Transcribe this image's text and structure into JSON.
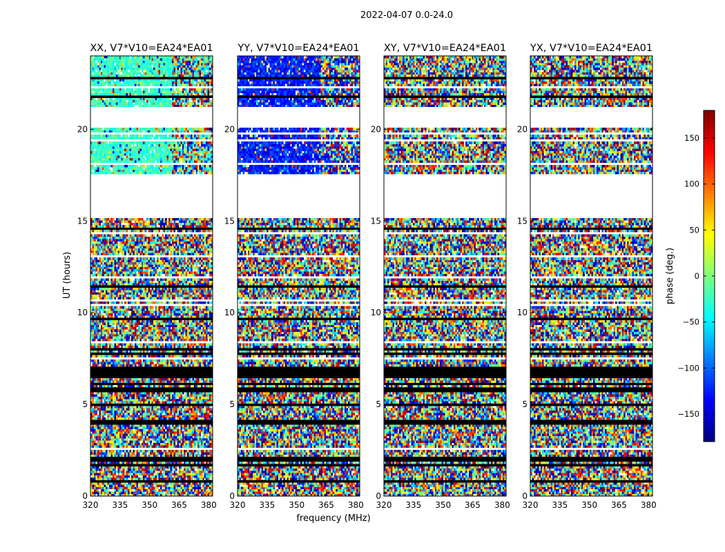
{
  "chart_data": {
    "type": "heatmap",
    "title": "2022-04-07 0.0-24.0",
    "xlabel": "frequency (MHz)",
    "ylabel": "UT (hours)",
    "xlim": [
      320,
      382
    ],
    "ylim": [
      0,
      24
    ],
    "x_ticks": [
      320,
      335,
      350,
      365,
      380
    ],
    "y_ticks": [
      0,
      5,
      10,
      15,
      20
    ],
    "colorbar": {
      "label": "phase (deg.)",
      "range": [
        -180,
        180
      ],
      "ticks": [
        -150,
        -100,
        -50,
        0,
        50,
        100,
        150
      ],
      "tick_labels": [
        "−150",
        "−100",
        "−50",
        "0",
        "50",
        "100",
        "150"
      ],
      "colormap": "jet",
      "colors": [
        "#00007f",
        "#0000ff",
        "#00ffff",
        "#7fff7f",
        "#ffff00",
        "#ff0000",
        "#7f0000"
      ]
    },
    "panels": [
      {
        "title": "XX, V7*V10=EA24*EA01",
        "coherent_bias_deg": -25,
        "coherent_region": {
          "ut_range": [
            17.5,
            24.0
          ],
          "freq_range": [
            320,
            361
          ]
        }
      },
      {
        "title": "YY, V7*V10=EA24*EA01",
        "coherent_bias_deg": -125,
        "coherent_region": {
          "ut_range": [
            17.5,
            24.0
          ],
          "freq_range": [
            320,
            361
          ]
        }
      },
      {
        "title": "XY, V7*V10=EA24*EA01",
        "coherent_bias_deg": null,
        "coherent_region": null
      },
      {
        "title": "YX, V7*V10=EA24*EA01",
        "coherent_bias_deg": null,
        "coherent_region": null
      }
    ],
    "flagged_ut_ranges": [
      [
        15.2,
        17.5
      ],
      [
        20.4,
        21.0
      ]
    ],
    "background_phase": "random (−180 to 180 deg.)"
  }
}
